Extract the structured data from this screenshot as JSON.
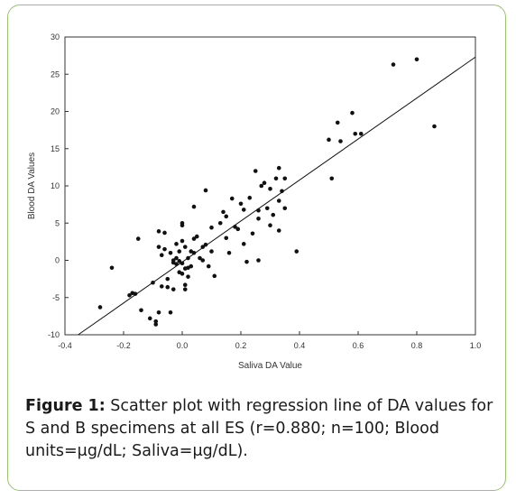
{
  "caption": {
    "label": "Figure 1:",
    "text": "Scatter plot with regression line of DA values for S and B specimens at all ES (r=0.880; n=100; Blood units=μg/dL; Saliva=μg/dL)."
  },
  "colors": {
    "frame": "#9bc36b",
    "points": "#111111",
    "line": "#111111",
    "axis": "#333333"
  },
  "chart_data": {
    "type": "scatter",
    "title": "",
    "xlabel": "Saliva DA Value",
    "ylabel": "Blood DA Values",
    "xlim": [
      -0.4,
      1.0
    ],
    "ylim": [
      -10,
      30
    ],
    "xticks": [
      -0.4,
      -0.2,
      0.0,
      0.2,
      0.4,
      0.6,
      0.8,
      1.0
    ],
    "xtick_labels": [
      "-0.4",
      "-0.2",
      "0.0",
      "0.2",
      "0.4",
      "0.6",
      "0.8",
      "1.0"
    ],
    "yticks": [
      -10,
      -5,
      0,
      5,
      10,
      15,
      20,
      25,
      30
    ],
    "ytick_labels": [
      "-10",
      "-5",
      "0",
      "5",
      "10",
      "15",
      "20",
      "25",
      "30"
    ],
    "grid": false,
    "regression_line": {
      "x": [
        -0.355,
        1.0
      ],
      "y": [
        -10,
        27.3
      ]
    },
    "points": [
      [
        -0.28,
        -6.3
      ],
      [
        -0.24,
        -1.0
      ],
      [
        -0.18,
        -4.7
      ],
      [
        -0.17,
        -4.4
      ],
      [
        -0.16,
        -4.5
      ],
      [
        -0.15,
        2.9
      ],
      [
        -0.14,
        -6.7
      ],
      [
        -0.11,
        -7.8
      ],
      [
        -0.1,
        -3.0
      ],
      [
        -0.09,
        -8.2
      ],
      [
        -0.09,
        -8.6
      ],
      [
        -0.08,
        3.9
      ],
      [
        -0.08,
        1.8
      ],
      [
        -0.08,
        -7.0
      ],
      [
        -0.07,
        0.7
      ],
      [
        -0.07,
        -3.5
      ],
      [
        -0.06,
        3.7
      ],
      [
        -0.06,
        1.5
      ],
      [
        -0.05,
        -3.6
      ],
      [
        -0.05,
        -2.5
      ],
      [
        -0.04,
        1.0
      ],
      [
        -0.04,
        -7.0
      ],
      [
        -0.03,
        0.0
      ],
      [
        -0.03,
        -0.3
      ],
      [
        -0.03,
        -3.9
      ],
      [
        -0.02,
        2.2
      ],
      [
        -0.02,
        0.3
      ],
      [
        -0.02,
        -0.5
      ],
      [
        -0.01,
        1.2
      ],
      [
        -0.01,
        -0.1
      ],
      [
        -0.01,
        -1.6
      ],
      [
        0.0,
        5.0
      ],
      [
        0.0,
        4.7
      ],
      [
        0.0,
        2.6
      ],
      [
        0.0,
        -0.4
      ],
      [
        0.0,
        -1.8
      ],
      [
        0.01,
        1.8
      ],
      [
        0.01,
        -1.1
      ],
      [
        0.01,
        -3.3
      ],
      [
        0.01,
        -3.9
      ],
      [
        0.02,
        0.3
      ],
      [
        0.02,
        -1.0
      ],
      [
        0.02,
        -2.2
      ],
      [
        0.03,
        1.2
      ],
      [
        0.03,
        -0.8
      ],
      [
        0.04,
        7.2
      ],
      [
        0.04,
        2.9
      ],
      [
        0.04,
        1.0
      ],
      [
        0.05,
        3.2
      ],
      [
        0.06,
        0.3
      ],
      [
        0.07,
        1.8
      ],
      [
        0.07,
        0.0
      ],
      [
        0.08,
        9.4
      ],
      [
        0.08,
        2.1
      ],
      [
        0.09,
        -0.8
      ],
      [
        0.1,
        4.4
      ],
      [
        0.1,
        1.2
      ],
      [
        0.11,
        -2.1
      ],
      [
        0.13,
        5.0
      ],
      [
        0.14,
        6.5
      ],
      [
        0.15,
        5.9
      ],
      [
        0.15,
        3.0
      ],
      [
        0.16,
        1.0
      ],
      [
        0.17,
        8.3
      ],
      [
        0.18,
        4.5
      ],
      [
        0.19,
        4.2
      ],
      [
        0.2,
        7.6
      ],
      [
        0.21,
        6.8
      ],
      [
        0.21,
        2.2
      ],
      [
        0.22,
        -0.2
      ],
      [
        0.23,
        8.4
      ],
      [
        0.24,
        3.6
      ],
      [
        0.25,
        12.0
      ],
      [
        0.26,
        6.7
      ],
      [
        0.26,
        5.6
      ],
      [
        0.26,
        0.0
      ],
      [
        0.27,
        10.0
      ],
      [
        0.28,
        10.4
      ],
      [
        0.29,
        7.0
      ],
      [
        0.3,
        9.6
      ],
      [
        0.3,
        4.7
      ],
      [
        0.31,
        6.1
      ],
      [
        0.32,
        11.0
      ],
      [
        0.33,
        12.4
      ],
      [
        0.33,
        8.0
      ],
      [
        0.33,
        4.0
      ],
      [
        0.34,
        9.3
      ],
      [
        0.35,
        11.0
      ],
      [
        0.35,
        7.0
      ],
      [
        0.39,
        1.2
      ],
      [
        0.5,
        16.2
      ],
      [
        0.51,
        11.0
      ],
      [
        0.53,
        18.5
      ],
      [
        0.54,
        16.0
      ],
      [
        0.58,
        19.8
      ],
      [
        0.59,
        17.0
      ],
      [
        0.61,
        17.0
      ],
      [
        0.72,
        26.3
      ],
      [
        0.8,
        27.0
      ],
      [
        0.86,
        18.0
      ]
    ]
  }
}
